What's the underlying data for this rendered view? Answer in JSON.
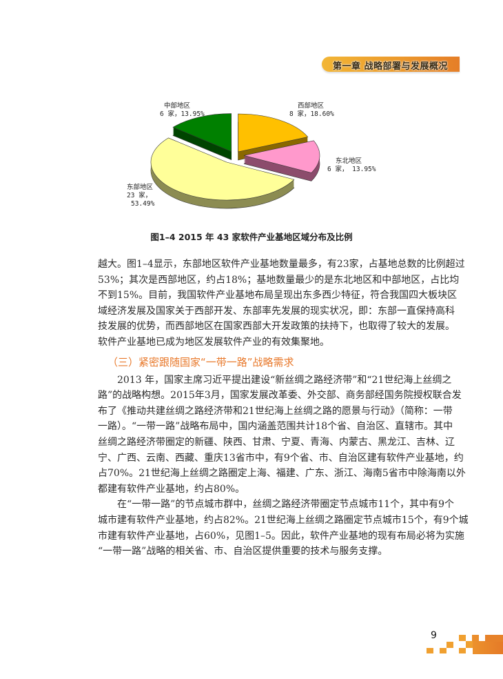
{
  "header": {
    "chapter_title": "第一章  战略部署与发展概况"
  },
  "figure": {
    "caption": "图1–4  2015 年 43 家软件产业基地区域分布及比例",
    "labels": [
      {
        "name": "西部地区",
        "detail": "8 家，18.60%"
      },
      {
        "name": "东北地区",
        "detail": "6 家， 13.95%"
      },
      {
        "name": "东部地区",
        "detail": "23 家，",
        "detail2": "53.49%"
      },
      {
        "name": "中部地区",
        "detail": "6 家，13.95%"
      }
    ]
  },
  "chart_data": {
    "type": "pie",
    "style": "3d-exploded",
    "title": "图1–4  2015 年 43 家软件产业基地区域分布及比例",
    "slices": [
      {
        "label": "西部地区",
        "count": 8,
        "percent": 18.6,
        "color": "#ffc000"
      },
      {
        "label": "东北地区",
        "count": 6,
        "percent": 13.95,
        "color": "#ff99cc"
      },
      {
        "label": "东部地区",
        "count": 23,
        "percent": 53.49,
        "color": "#ffff99"
      },
      {
        "label": "中部地区",
        "count": 6,
        "percent": 13.95,
        "color": "#008000"
      }
    ]
  },
  "body": {
    "p1": [
      "越大。图1–4显示，东部地区软件产业基地数量最多，有23家，占基地总数的比例超过",
      "53%；其次是西部地区，约占18%；基地数量最少的是东北地区和中部地区，占比均",
      "不到15%。目前，我国软件产业基地布局呈现出东多西少特征，符合我国四大板块区",
      "域经济发展及国家关于西部开发、东部率先发展的现实状况，即：东部一直保持高科",
      "技发展的优势，而西部地区在国家西部大开发政策的扶持下，也取得了较大的发展。",
      "软件产业基地已成为地区发展软件产业的有效集聚地。"
    ],
    "heading": "（三）紧密跟随国家“一带一路”战略需求",
    "p2": [
      "2013 年，国家主席习近平提出建设“新丝绸之路经济带”和“21世纪海上丝绸之",
      "路”的战略构想。2015年3月，国家发展改革委、外交部、商务部经国务院授权联合发",
      "布了《推动共建丝绸之路经济带和21世纪海上丝绸之路的愿景与行动》（简称：一带",
      "一路）。“一带一路”战略布局中，国内涵盖范围共计18个省、自治区、直辖市。其中",
      "丝绸之路经济带圈定的新疆、陕西、甘肃、宁夏、青海、内蒙古、黑龙江、吉林、辽",
      "宁、广西、云南、西藏、重庆13省市中，有9个省、市、自治区建有软件产业基地，约",
      "占70%。21世纪海上丝绸之路圈定上海、福建、广东、浙江、海南5省市中除海南以外",
      "都建有软件产业基地，约占80%。"
    ],
    "p3": [
      "在“一带一路”的节点城市群中，丝绸之路经济带圈定节点城市11个，其中有9个",
      "城市建有软件产业基地，约占82%。21世纪海上丝绸之路圈定节点城市15个，有9个城",
      "市建有软件产业基地，占60%，见图1–5。因此，软件产业基地的现有布局必将为实施",
      "“一带一路”战略的相关省、市、自治区提供重要的技术与服务支撑。"
    ]
  },
  "footer": {
    "page_number": "9",
    "accent_color": "#f0a030"
  }
}
